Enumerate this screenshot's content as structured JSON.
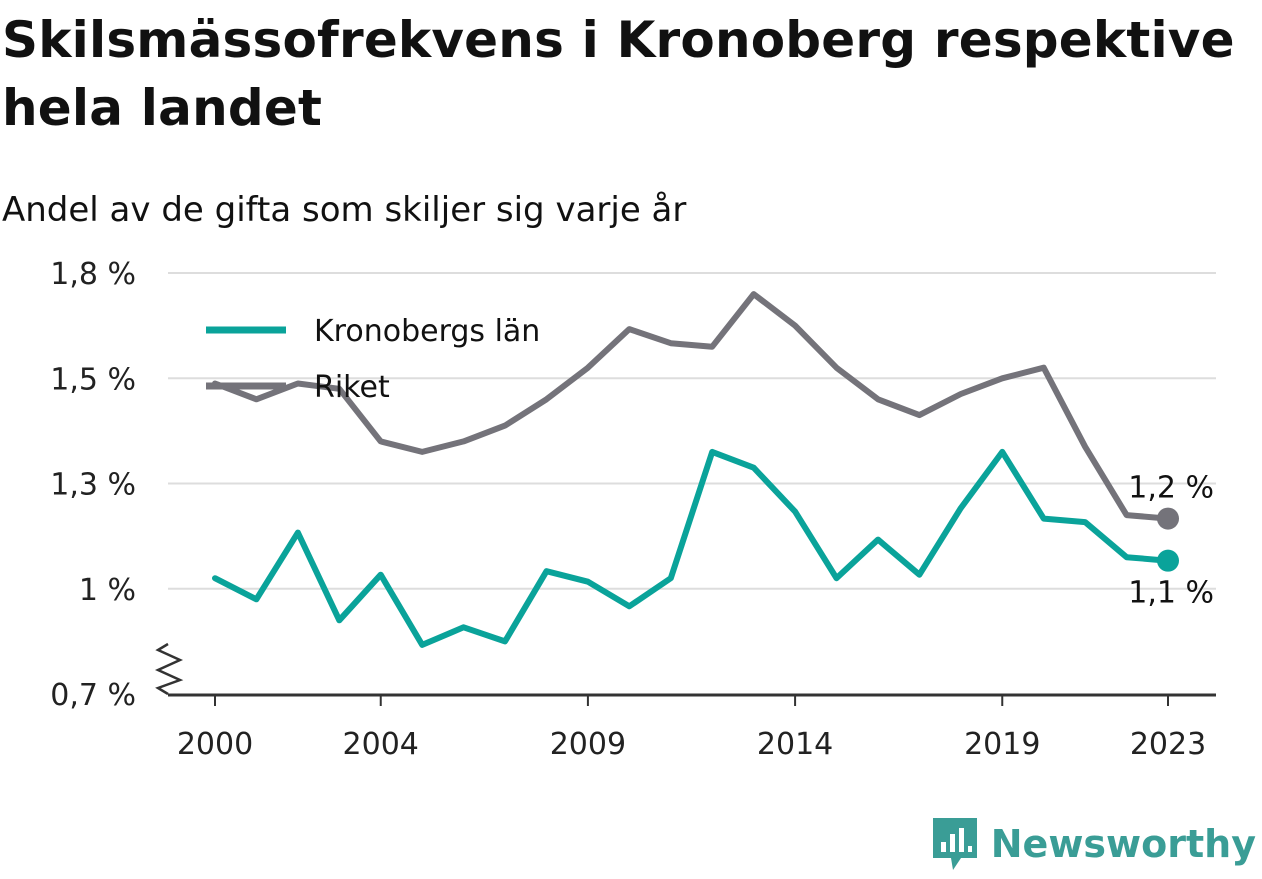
{
  "title": "Skilsmässofrekvens i Kronoberg respektive hela landet",
  "subtitle": "Andel av de gifta som skiljer sig varje år",
  "brand": {
    "name": "Newsworthy",
    "icon": "newsworthy-logo-icon",
    "color": "#3a9d96"
  },
  "chart_data": {
    "type": "line",
    "title": "Skilsmässofrekvens i Kronoberg respektive hela landet",
    "subtitle": "Andel av de gifta som skiljer sig varje år",
    "x": [
      2000,
      2001,
      2002,
      2003,
      2004,
      2005,
      2006,
      2007,
      2008,
      2009,
      2010,
      2011,
      2012,
      2013,
      2014,
      2015,
      2016,
      2017,
      2018,
      2019,
      2020,
      2021,
      2022,
      2023
    ],
    "x_ticks": [
      2000,
      2004,
      2009,
      2014,
      2019,
      2023
    ],
    "y_ticks": [
      {
        "value": 0.7,
        "label": "0,7 %"
      },
      {
        "value": 1.0,
        "label": "1 %"
      },
      {
        "value": 1.3,
        "label": "1,3 %"
      },
      {
        "value": 1.5,
        "label": "1,5 %"
      },
      {
        "value": 1.8,
        "label": "1,8 %"
      }
    ],
    "ylim": [
      0.7,
      1.8
    ],
    "axis_break": true,
    "grid": true,
    "legend_position": "top-left",
    "series": [
      {
        "name": "Kronobergs län",
        "color": "#0aa39a",
        "values": [
          1.03,
          0.97,
          1.16,
          0.91,
          1.04,
          0.84,
          0.89,
          0.85,
          1.05,
          1.02,
          0.95,
          1.03,
          1.36,
          1.33,
          1.22,
          1.03,
          1.14,
          1.04,
          1.23,
          1.36,
          1.2,
          1.19,
          1.09,
          1.08
        ],
        "end_label": "1,1 %"
      },
      {
        "name": "Riket",
        "color": "#74737a",
        "values": [
          1.49,
          1.46,
          1.49,
          1.48,
          1.38,
          1.36,
          1.38,
          1.41,
          1.46,
          1.53,
          1.64,
          1.6,
          1.59,
          1.74,
          1.65,
          1.53,
          1.46,
          1.43,
          1.47,
          1.5,
          1.53,
          1.37,
          1.21,
          1.2
        ],
        "end_label": "1,2 %"
      }
    ]
  }
}
